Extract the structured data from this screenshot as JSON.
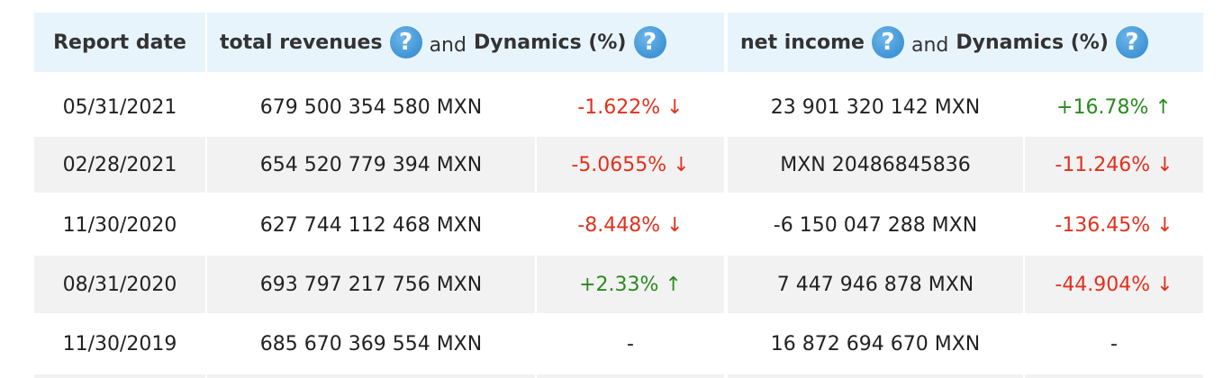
{
  "header": {
    "date": "Report date",
    "revenue": "total revenues",
    "and": "and",
    "dynamics": "Dynamics (%)",
    "income": "net income",
    "help": "?"
  },
  "table": {
    "rows": [
      [
        "05/31/2021",
        "679 500 354 580 MXN",
        "-1.622% ↓",
        "23 901 320 142 MXN",
        "+16.78% ↑"
      ],
      [
        "02/28/2021",
        "654 520 779 394 MXN",
        "-5.0655% ↓",
        "MXN 20486845836",
        "-11.246% ↓"
      ],
      [
        "11/30/2020",
        "627 744 112 468 MXN",
        "-8.448% ↓",
        "-6 150 047 288 MXN",
        "-136.45% ↓"
      ],
      [
        "08/31/2020",
        "693 797 217 756 MXN",
        "+2.33% ↑",
        "7 447 946 878 MXN",
        "-44.904% ↓"
      ],
      [
        "11/30/2019",
        "685 670 369 554 MXN",
        "-",
        "16 872 694 670 MXN",
        "-"
      ]
    ]
  }
}
